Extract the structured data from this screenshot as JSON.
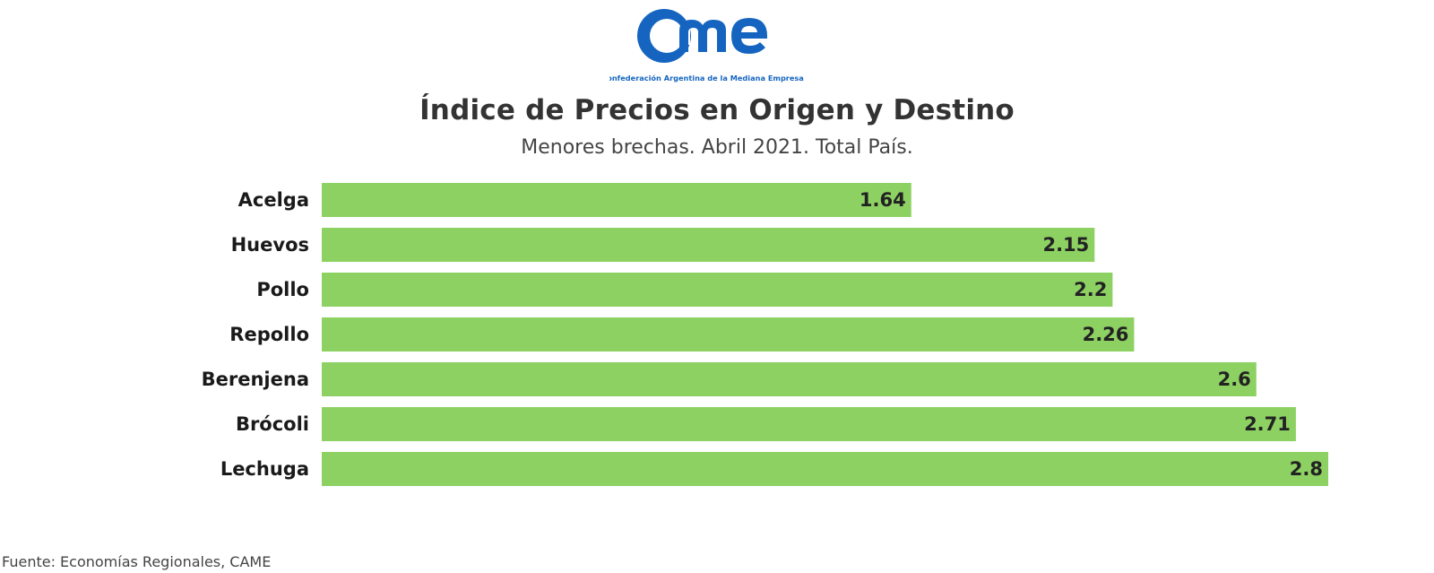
{
  "logo": {
    "mark_text": "CAME",
    "org_name": "Confederación Argentina de la Mediana Empresa",
    "brand_color": "#1565C0"
  },
  "chart_data": {
    "type": "bar",
    "orientation": "horizontal",
    "title": "Índice de Precios en Origen y Destino",
    "subtitle": "Menores brechas. Abril 2021. Total País.",
    "categories": [
      "Acelga",
      "Huevos",
      "Pollo",
      "Repollo",
      "Berenjena",
      "Brócoli",
      "Lechuga"
    ],
    "values": [
      1.64,
      2.15,
      2.2,
      2.26,
      2.6,
      2.71,
      2.8
    ],
    "value_labels": [
      "1.64",
      "2.15",
      "2.2",
      "2.26",
      "2.6",
      "2.71",
      "2.8"
    ],
    "xlim": [
      0,
      2.8
    ],
    "grid": false,
    "legend": "none",
    "bar_color": "#8ED163"
  },
  "footer": {
    "source": "Fuente: Economías Regionales, CAME"
  }
}
